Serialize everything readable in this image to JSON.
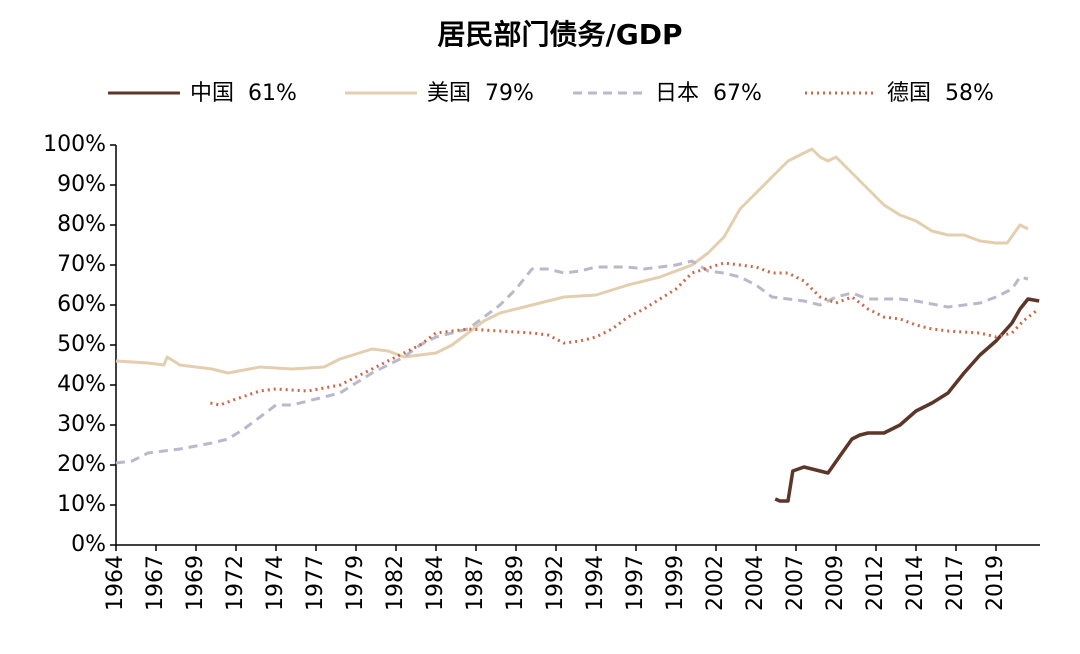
{
  "chart_data": {
    "type": "line",
    "title": "居民部门债务/GDP",
    "xlim": [
      1964,
      2021.75
    ],
    "xticks": [
      1964,
      {
        "value": 1966.5,
        "label": "1967"
      },
      1969,
      {
        "value": 1971.5,
        "label": "1972"
      },
      1974,
      {
        "value": 1976.5,
        "label": "1977"
      },
      1979,
      {
        "value": 1981.5,
        "label": "1982"
      },
      1984,
      {
        "value": 1986.5,
        "label": "1987"
      },
      1989,
      {
        "value": 1991.5,
        "label": "1992"
      },
      1994,
      {
        "value": 1996.5,
        "label": "1997"
      },
      1999,
      {
        "value": 2001.5,
        "label": "2002"
      },
      2004,
      {
        "value": 2006.5,
        "label": "2007"
      },
      2009,
      {
        "value": 2011.5,
        "label": "2012"
      },
      2014,
      {
        "value": 2016.5,
        "label": "2017"
      },
      2019
    ],
    "ylim": [
      0,
      100
    ],
    "yticks": [
      {
        "value": 0,
        "label": "0%"
      },
      {
        "value": 10,
        "label": "10%"
      },
      {
        "value": 20,
        "label": "20%"
      },
      {
        "value": 30,
        "label": "30%"
      },
      {
        "value": 40,
        "label": "40%"
      },
      {
        "value": 50,
        "label": "50%"
      },
      {
        "value": 60,
        "label": "60%"
      },
      {
        "value": 70,
        "label": "70%"
      },
      {
        "value": 80,
        "label": "80%"
      },
      {
        "value": 90,
        "label": "90%"
      },
      {
        "value": 100,
        "label": "100%"
      }
    ],
    "series": [
      {
        "name": "中国  61%",
        "color": "#5c3629",
        "dash": "solid",
        "x": [
          2005.2,
          2005.5,
          2006,
          2006.3,
          2007,
          2007.5,
          2008,
          2008.5,
          2009.2,
          2010,
          2010.5,
          2011,
          2012,
          2013,
          2014,
          2015,
          2016,
          2017,
          2018,
          2019,
          2020,
          2020.5,
          2021,
          2021.7
        ],
        "values": [
          11.5,
          11,
          11,
          18.5,
          19.5,
          19,
          18.5,
          18,
          22,
          26.5,
          27.5,
          28,
          28,
          30,
          33.5,
          35.5,
          38,
          43,
          47.5,
          51,
          55.5,
          59,
          61.5,
          61
        ]
      },
      {
        "name": "美国  79%",
        "color": "#e3cfb0",
        "dash": "solid",
        "x": [
          1964,
          1966,
          1967,
          1967.2,
          1968,
          1970,
          1971,
          1973,
          1975,
          1977,
          1978,
          1980,
          1981,
          1982,
          1983,
          1984,
          1985,
          1986,
          1987,
          1988,
          1990,
          1992,
          1994,
          1996,
          1998,
          2000,
          2001,
          2002,
          2003,
          2004,
          2005,
          2006,
          2007,
          2007.5,
          2008,
          2008.5,
          2009,
          2010,
          2011,
          2012,
          2013,
          2014,
          2015,
          2016,
          2017,
          2018,
          2019,
          2019.7,
          2020.5,
          2021
        ],
        "values": [
          46,
          45.5,
          45,
          47,
          45,
          44,
          43,
          44.5,
          44,
          44.5,
          46.5,
          49,
          48.5,
          47,
          47.5,
          48,
          50,
          53,
          56,
          58,
          60,
          62,
          62.5,
          65,
          67,
          70,
          73,
          77,
          84,
          88,
          92,
          96,
          98,
          99,
          97,
          96,
          97,
          93,
          89,
          85,
          82.5,
          81,
          78.5,
          77.5,
          77.5,
          76,
          75.5,
          75.5,
          80,
          79
        ]
      },
      {
        "name": "日本  67%",
        "color": "#b9b9cb",
        "dash": "9 6",
        "x": [
          1964,
          1965,
          1966,
          1968,
          1970,
          1971,
          1972,
          1973,
          1974,
          1975,
          1976,
          1978,
          1980,
          1982,
          1983,
          1984,
          1986,
          1987,
          1988,
          1989,
          1990,
          1991,
          1992,
          1993,
          1994,
          1996,
          1997,
          1999,
          2000,
          2001,
          2002,
          2003,
          2004,
          2005,
          2007,
          2008,
          2009,
          2010,
          2011,
          2013,
          2014,
          2016,
          2018,
          2019,
          2020,
          2020.5,
          2021
        ],
        "values": [
          20.5,
          21,
          23,
          24,
          25.5,
          26.5,
          29,
          32,
          35,
          35,
          36,
          38,
          43,
          47,
          50,
          52,
          54,
          57,
          60,
          64,
          69,
          69,
          68,
          68.5,
          69.5,
          69.5,
          69,
          70,
          71,
          68.5,
          68,
          67,
          65,
          62,
          61,
          60,
          62,
          63,
          61.5,
          61.5,
          61,
          59.5,
          60.5,
          62,
          64,
          67,
          66.5
        ]
      },
      {
        "name": "德国  58%",
        "color": "#c8694a",
        "dash": "2 4",
        "x": [
          1969.9,
          1970.5,
          1971.5,
          1973,
          1974,
          1976,
          1978,
          1980,
          1982,
          1983,
          1984,
          1986,
          1988,
          1990,
          1991,
          1992,
          1993,
          1994,
          1995,
          1996,
          1997,
          1999,
          2000,
          2002,
          2003,
          2004,
          2005,
          2006,
          2007,
          2008,
          2009,
          2010,
          2011,
          2012,
          2013,
          2014,
          2015,
          2016,
          2018,
          2019,
          2020,
          2020.7,
          2021.5
        ],
        "values": [
          35.5,
          35,
          36.5,
          38.5,
          39,
          38.5,
          40,
          44,
          48,
          50,
          53,
          54,
          53.5,
          53,
          52.5,
          50.5,
          51,
          52,
          54,
          57,
          59,
          64,
          68,
          70.5,
          70,
          69.5,
          68,
          68,
          66,
          62,
          60.5,
          62,
          59,
          57,
          56.5,
          55,
          54,
          53.5,
          53,
          52,
          53,
          56,
          58.5
        ]
      }
    ]
  }
}
